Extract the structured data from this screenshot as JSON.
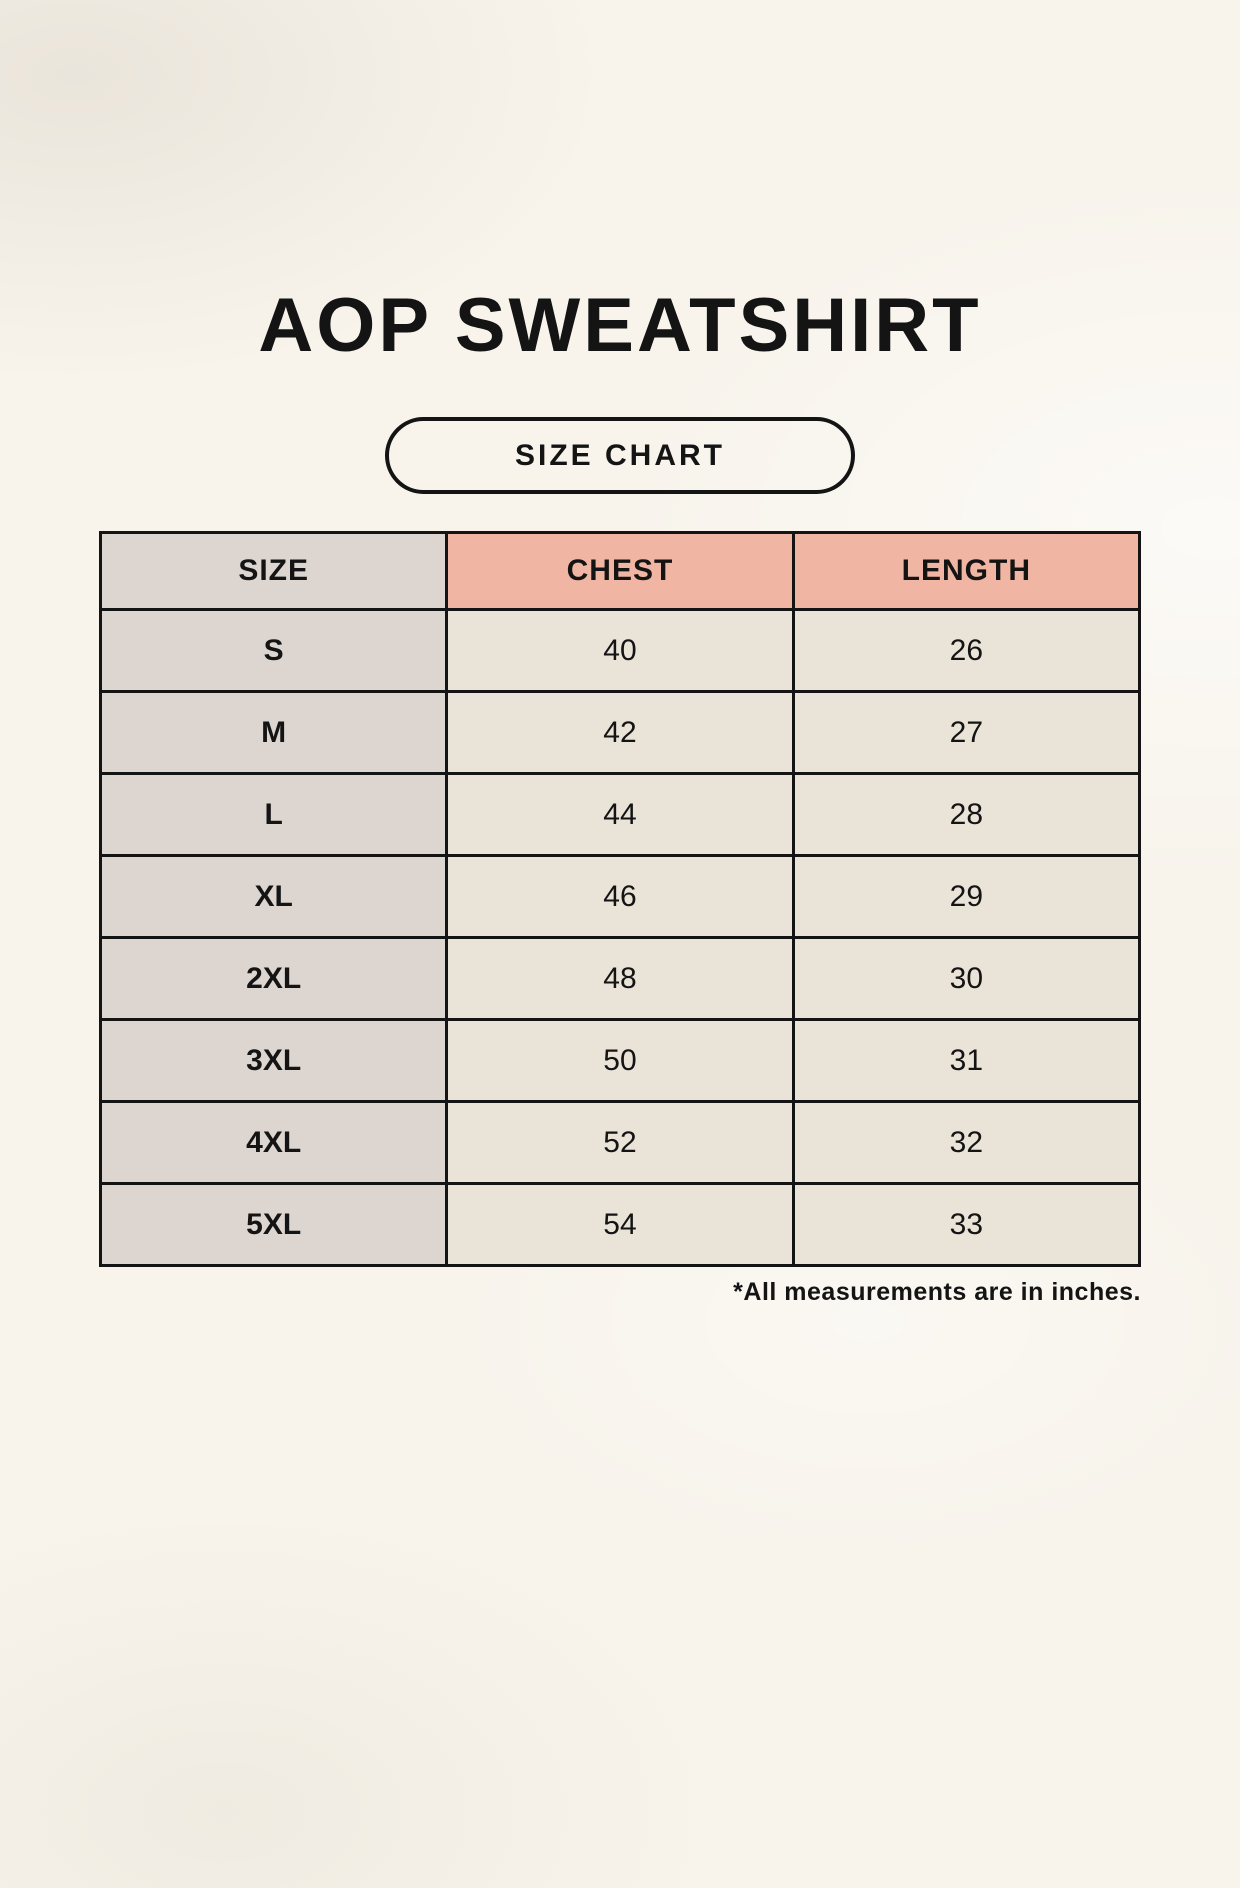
{
  "title": "AOP SWEATSHIRT",
  "badge_label": "SIZE CHART",
  "footnote": "*All measurements are in inches.",
  "colors": {
    "page_background": "#f8f4ec",
    "size_column_bg": "#ddd6d0",
    "header_accent_bg": "#f0b6a3",
    "value_cell_bg": "#eae3d8",
    "border_and_text": "#141414"
  },
  "chart_data": {
    "type": "table",
    "title": "AOP SWEATSHIRT",
    "subtitle": "SIZE CHART",
    "unit_note": "*All measurements are in inches.",
    "columns": [
      "SIZE",
      "CHEST",
      "LENGTH"
    ],
    "rows": [
      {
        "size": "S",
        "chest": 40,
        "length": 26
      },
      {
        "size": "M",
        "chest": 42,
        "length": 27
      },
      {
        "size": "L",
        "chest": 44,
        "length": 28
      },
      {
        "size": "XL",
        "chest": 46,
        "length": 29
      },
      {
        "size": "2XL",
        "chest": 48,
        "length": 30
      },
      {
        "size": "3XL",
        "chest": 50,
        "length": 31
      },
      {
        "size": "4XL",
        "chest": 52,
        "length": 32
      },
      {
        "size": "5XL",
        "chest": 54,
        "length": 33
      }
    ]
  }
}
